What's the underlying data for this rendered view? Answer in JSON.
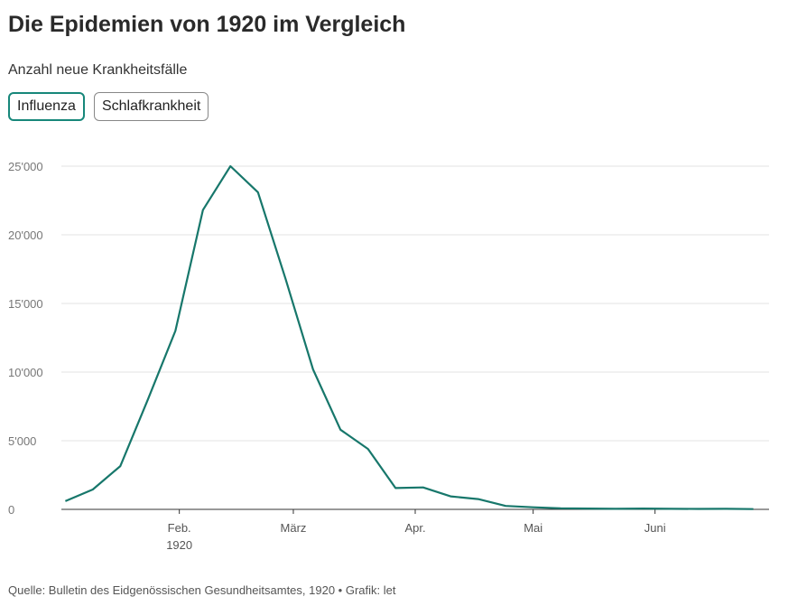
{
  "header": {
    "title": "Die Epidemien von 1920 im Vergleich",
    "subtitle": "Anzahl neue Krankheitsfälle"
  },
  "tabs": [
    {
      "label": "Influenza",
      "active": true
    },
    {
      "label": "Schlafkrankheit",
      "active": false
    }
  ],
  "footer": {
    "source": "Quelle: Bulletin des Eidgenössischen Gesundheitsamtes, 1920 • Grafik: let"
  },
  "colors": {
    "line": "#17776b",
    "grid": "#e3e3e3",
    "active_tab_border": "#17877a"
  },
  "chart_data": {
    "type": "line",
    "title": "Die Epidemien von 1920 im Vergleich",
    "ylabel": "Anzahl neue Krankheitsfälle",
    "xlabel": "",
    "ylim": [
      0,
      25000
    ],
    "xlim": [
      "1920-01-02",
      "1920-06-30"
    ],
    "y_ticks": [
      0,
      5000,
      10000,
      15000,
      20000,
      25000
    ],
    "y_tick_labels": [
      "0",
      "5'000",
      "10'000",
      "15'000",
      "20'000",
      "25'000"
    ],
    "x_ticks": [
      {
        "date": "1920-02-01",
        "label": "Feb.",
        "sublabel": "1920"
      },
      {
        "date": "1920-03-01",
        "label": "März",
        "sublabel": ""
      },
      {
        "date": "1920-04-01",
        "label": "Apr.",
        "sublabel": ""
      },
      {
        "date": "1920-05-01",
        "label": "Mai",
        "sublabel": ""
      },
      {
        "date": "1920-06-01",
        "label": "Juni",
        "sublabel": ""
      }
    ],
    "grid": true,
    "series": [
      {
        "name": "Influenza",
        "points": [
          {
            "x": "1920-01-03",
            "y": 600
          },
          {
            "x": "1920-01-10",
            "y": 1450
          },
          {
            "x": "1920-01-17",
            "y": 3150
          },
          {
            "x": "1920-01-24",
            "y": 8000
          },
          {
            "x": "1920-01-31",
            "y": 13000
          },
          {
            "x": "1920-02-07",
            "y": 21800
          },
          {
            "x": "1920-02-14",
            "y": 25000
          },
          {
            "x": "1920-02-21",
            "y": 23100
          },
          {
            "x": "1920-02-28",
            "y": 16800
          },
          {
            "x": "1920-03-06",
            "y": 10200
          },
          {
            "x": "1920-03-13",
            "y": 5800
          },
          {
            "x": "1920-03-20",
            "y": 4400
          },
          {
            "x": "1920-03-27",
            "y": 1550
          },
          {
            "x": "1920-04-03",
            "y": 1600
          },
          {
            "x": "1920-04-10",
            "y": 950
          },
          {
            "x": "1920-04-17",
            "y": 750
          },
          {
            "x": "1920-04-24",
            "y": 250
          },
          {
            "x": "1920-05-01",
            "y": 150
          },
          {
            "x": "1920-05-08",
            "y": 80
          },
          {
            "x": "1920-05-15",
            "y": 60
          },
          {
            "x": "1920-05-22",
            "y": 40
          },
          {
            "x": "1920-05-29",
            "y": 60
          },
          {
            "x": "1920-06-05",
            "y": 40
          },
          {
            "x": "1920-06-12",
            "y": 30
          },
          {
            "x": "1920-06-19",
            "y": 40
          },
          {
            "x": "1920-06-26",
            "y": 20
          }
        ]
      }
    ]
  }
}
